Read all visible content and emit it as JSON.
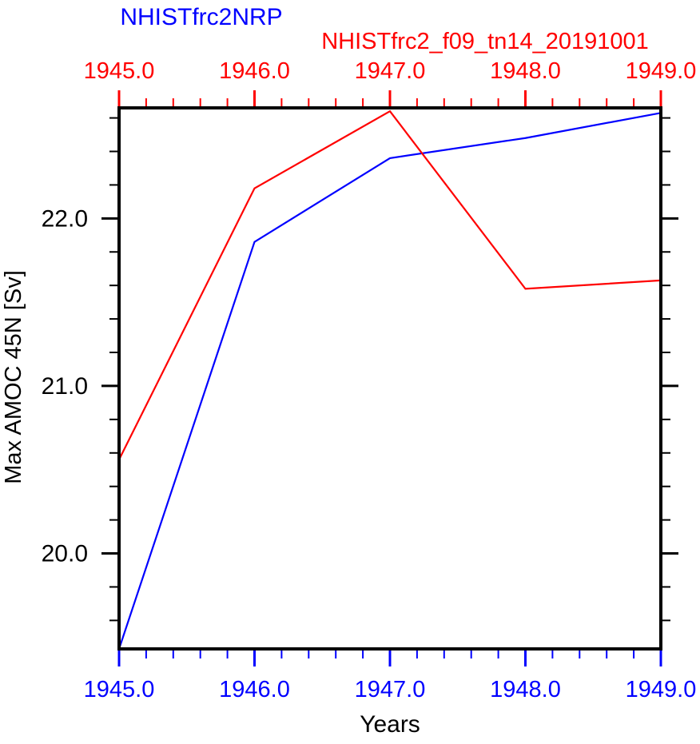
{
  "chart_data": {
    "type": "line",
    "titles": {
      "left": {
        "text": "NHISTfrc2NRP",
        "color": "#0000ff"
      },
      "right": {
        "text": "NHISTfrc2_f09_tn14_20191001",
        "color": "#ff0000"
      }
    },
    "xlabel": "Years",
    "ylabel": "Max AMOC 45N [Sv]",
    "x": [
      1945,
      1946,
      1947,
      1948,
      1949
    ],
    "series": [
      {
        "name": "NHISTfrc2NRP",
        "color": "#0000ff",
        "values": [
          19.43,
          21.86,
          22.36,
          22.48,
          22.63
        ]
      },
      {
        "name": "NHISTfrc2_f09_tn14_20191001",
        "color": "#ff0000",
        "values": [
          20.56,
          22.18,
          22.64,
          21.58,
          21.63
        ]
      }
    ],
    "xlim": [
      1945,
      1949
    ],
    "ylim": [
      19.43,
      22.66
    ],
    "x_minor_step": 0.2,
    "y_minor_step": 0.2,
    "axis_top": {
      "color": "#ff0000",
      "tick_values": [
        1945,
        1946,
        1947,
        1948,
        1949
      ],
      "tick_labels": [
        "1945.0",
        "1946.0",
        "1947.0",
        "1948.0",
        "1949.0"
      ]
    },
    "axis_bottom": {
      "color": "#0000ff",
      "tick_values": [
        1945,
        1946,
        1947,
        1948,
        1949
      ],
      "tick_labels": [
        "1945.0",
        "1946.0",
        "1947.0",
        "1948.0",
        "1949.0"
      ]
    },
    "axis_left": {
      "color": "#000000",
      "tick_values": [
        20,
        21,
        22
      ],
      "tick_labels": [
        "20.0",
        "21.0",
        "22.0"
      ]
    },
    "axis_right": {
      "color": "#000000",
      "tick_values": [
        20,
        21,
        22
      ],
      "tick_labels": []
    },
    "frame_color": "#000000",
    "grid": false,
    "legend_position": "none"
  }
}
